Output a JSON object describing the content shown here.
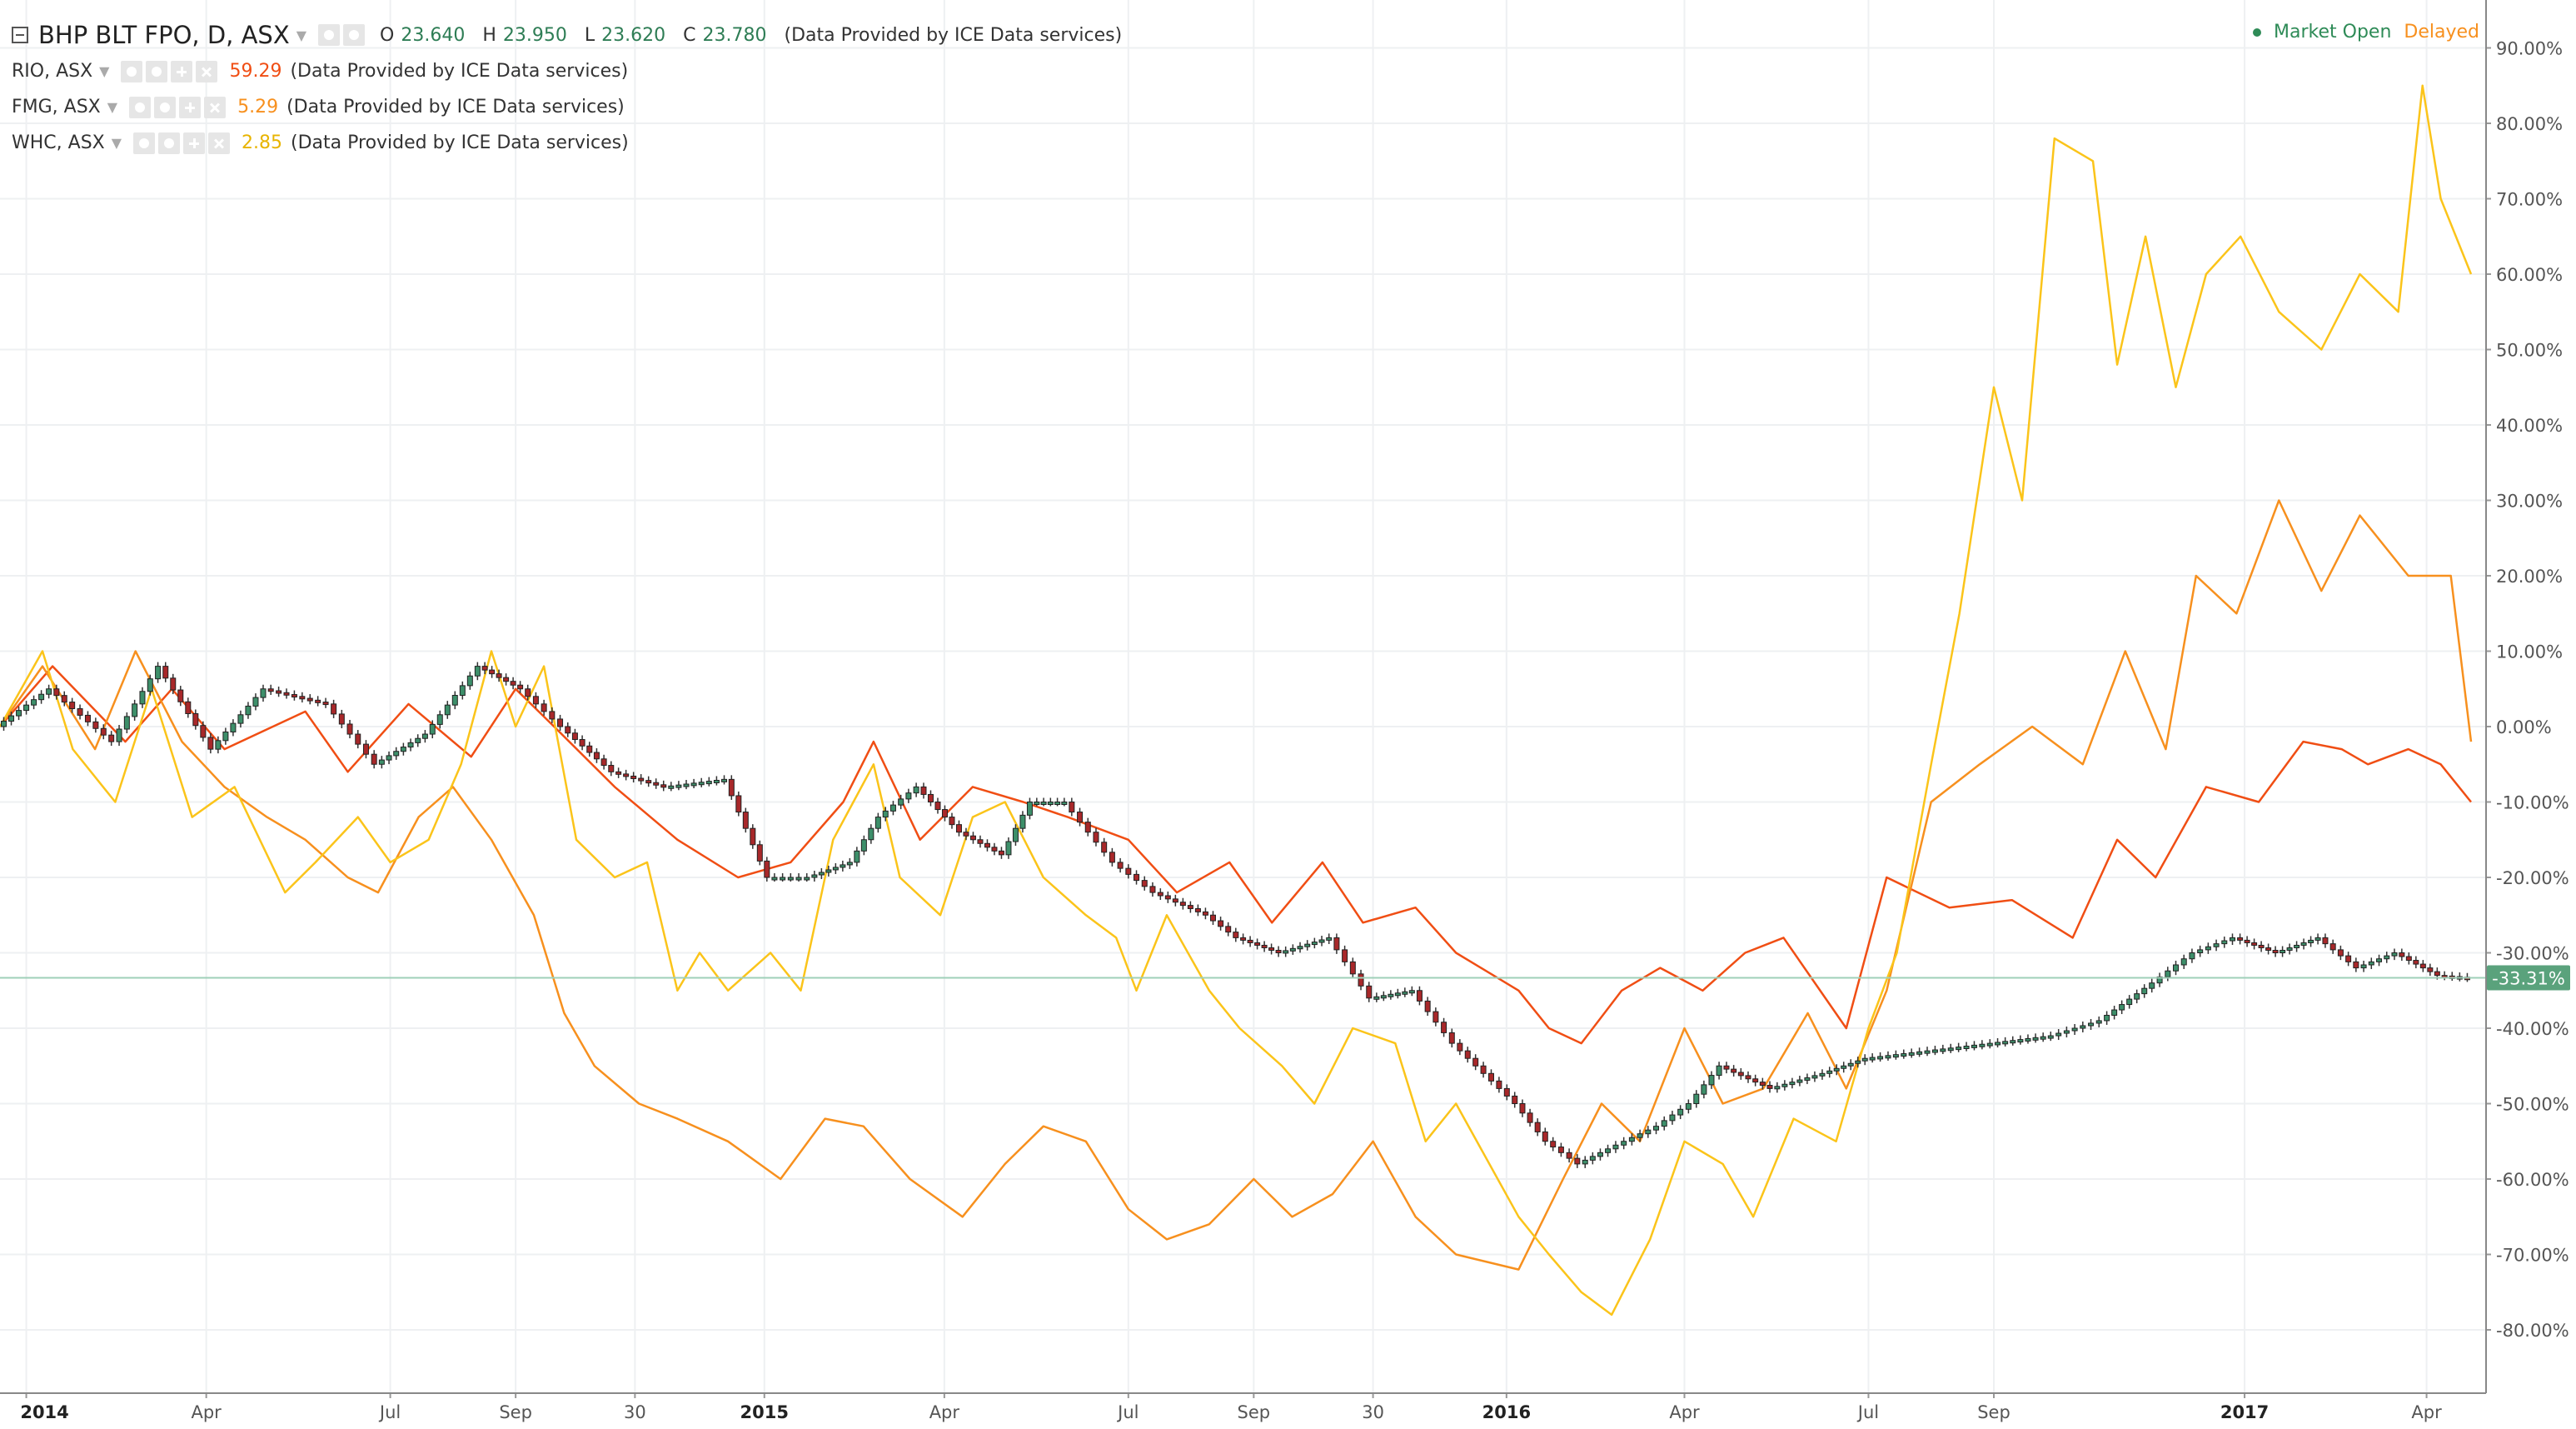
{
  "header": {
    "main_symbol": "BHP BLT FPO, D, ASX",
    "ohlc": [
      {
        "label": "O",
        "value": "23.640"
      },
      {
        "label": "H",
        "value": "23.950"
      },
      {
        "label": "L",
        "value": "23.620"
      },
      {
        "label": "C",
        "value": "23.780"
      }
    ],
    "provider": "(Data Provided by ICE Data services)",
    "market_status": "Market Open",
    "delay_status": "Delayed"
  },
  "overlays": [
    {
      "symbol": "RIO, ASX",
      "value": "59.29",
      "provider": "(Data Provided by ICE Data services)",
      "color": "#f04e14"
    },
    {
      "symbol": "FMG, ASX",
      "value": "5.29",
      "provider": "(Data Provided by ICE Data services)",
      "color": "#f7901e"
    },
    {
      "symbol": "WHC, ASX",
      "value": "2.85",
      "provider": "(Data Provided by ICE Data services)",
      "color": "#fbc41a"
    }
  ],
  "colors": {
    "up_candle": "#3d8f6a",
    "down_candle": "#a8282a",
    "price_label_bg": "#5aa27c",
    "market_open": "#2e8b57",
    "delayed": "#f7901e",
    "grid": "#eef0f2",
    "axis_text": "#555555"
  },
  "chart_data": {
    "type": "line",
    "y_unit": "%",
    "ylim": [
      -85,
      95
    ],
    "y_ticks": [
      "90.00%",
      "80.00%",
      "70.00%",
      "60.00%",
      "50.00%",
      "40.00%",
      "30.00%",
      "20.00%",
      "10.00%",
      "0.00%",
      "-10.00%",
      "-20.00%",
      "-30.00%",
      "-40.00%",
      "-50.00%",
      "-60.00%",
      "-70.00%",
      "-80.00%"
    ],
    "x_tick_labels": [
      "2014",
      "Apr",
      "Jul",
      "Sep",
      "30",
      "2015",
      "Apr",
      "Jul",
      "Sep",
      "30",
      "2016",
      "Apr",
      "Jul",
      "Sep",
      "2017",
      "Apr"
    ],
    "x_tick_dates": [
      "2014-01-02",
      "2014-04-01",
      "2014-07-01",
      "2014-09-01",
      "2014-10-30",
      "2015-01-02",
      "2015-04-01",
      "2015-07-01",
      "2015-09-01",
      "2015-10-30",
      "2016-01-04",
      "2016-04-01",
      "2016-07-01",
      "2016-09-01",
      "2017-01-03",
      "2017-04-03"
    ],
    "x_range": [
      "2013-12-20",
      "2017-04-25"
    ],
    "last_value_label": "-33.31%",
    "last_value": -33.31,
    "grid": true,
    "legend": "top-left",
    "series": [
      {
        "name": "RIO, ASX",
        "kind": "line",
        "color": "#f04e14",
        "x": [
          "2013-12-20",
          "2014-01-15",
          "2014-02-20",
          "2014-03-15",
          "2014-04-10",
          "2014-05-20",
          "2014-06-10",
          "2014-07-10",
          "2014-08-10",
          "2014-09-01",
          "2014-09-20",
          "2014-10-20",
          "2014-11-20",
          "2014-12-20",
          "2015-01-15",
          "2015-02-10",
          "2015-02-25",
          "2015-03-20",
          "2015-04-15",
          "2015-05-10",
          "2015-06-01",
          "2015-07-01",
          "2015-07-25",
          "2015-08-20",
          "2015-09-10",
          "2015-10-05",
          "2015-10-25",
          "2015-11-20",
          "2015-12-10",
          "2016-01-10",
          "2016-01-25",
          "2016-02-10",
          "2016-03-01",
          "2016-03-20",
          "2016-04-10",
          "2016-05-01",
          "2016-05-20",
          "2016-06-20",
          "2016-07-10",
          "2016-08-10",
          "2016-09-10",
          "2016-10-10",
          "2016-11-01",
          "2016-11-20",
          "2016-12-15",
          "2017-01-10",
          "2017-02-01",
          "2017-02-20",
          "2017-03-05",
          "2017-03-25",
          "2017-04-10",
          "2017-04-25"
        ],
        "y": [
          0,
          8,
          -2,
          5,
          -3,
          2,
          -6,
          3,
          -4,
          5,
          0,
          -8,
          -15,
          -20,
          -18,
          -10,
          -2,
          -15,
          -8,
          -10,
          -12,
          -15,
          -22,
          -18,
          -26,
          -18,
          -26,
          -24,
          -30,
          -35,
          -40,
          -42,
          -35,
          -32,
          -35,
          -30,
          -28,
          -40,
          -20,
          -24,
          -23,
          -28,
          -15,
          -20,
          -8,
          -10,
          -2,
          -3,
          -5,
          -3,
          -5,
          -10
        ]
      },
      {
        "name": "FMG, ASX",
        "kind": "line",
        "color": "#f7901e",
        "x": [
          "2013-12-20",
          "2014-01-10",
          "2014-02-05",
          "2014-02-25",
          "2014-03-20",
          "2014-04-10",
          "2014-05-01",
          "2014-05-20",
          "2014-06-10",
          "2014-06-25",
          "2014-07-15",
          "2014-08-01",
          "2014-08-20",
          "2014-09-10",
          "2014-09-25",
          "2014-10-10",
          "2014-11-01",
          "2014-11-20",
          "2014-12-15",
          "2015-01-10",
          "2015-02-01",
          "2015-02-20",
          "2015-03-15",
          "2015-04-10",
          "2015-05-01",
          "2015-05-20",
          "2015-06-10",
          "2015-07-01",
          "2015-07-20",
          "2015-08-10",
          "2015-09-01",
          "2015-09-20",
          "2015-10-10",
          "2015-10-30",
          "2015-11-20",
          "2015-12-10",
          "2016-01-10",
          "2016-02-01",
          "2016-02-20",
          "2016-03-10",
          "2016-04-01",
          "2016-04-20",
          "2016-05-10",
          "2016-06-01",
          "2016-06-20",
          "2016-07-10",
          "2016-08-01",
          "2016-08-25",
          "2016-09-20",
          "2016-10-15",
          "2016-11-05",
          "2016-11-25",
          "2016-12-10",
          "2016-12-30",
          "2017-01-20",
          "2017-02-10",
          "2017-03-01",
          "2017-03-25",
          "2017-04-15",
          "2017-04-25"
        ],
        "y": [
          0,
          8,
          -3,
          10,
          -2,
          -8,
          -12,
          -15,
          -20,
          -22,
          -12,
          -8,
          -15,
          -25,
          -38,
          -45,
          -50,
          -52,
          -55,
          -60,
          -52,
          -53,
          -60,
          -65,
          -58,
          -53,
          -55,
          -64,
          -68,
          -66,
          -60,
          -65,
          -62,
          -55,
          -65,
          -70,
          -72,
          -60,
          -50,
          -55,
          -40,
          -50,
          -48,
          -38,
          -48,
          -35,
          -10,
          -5,
          0,
          -5,
          10,
          -3,
          20,
          15,
          30,
          18,
          28,
          20,
          20,
          -2
        ]
      },
      {
        "name": "WHC, ASX",
        "kind": "line",
        "color": "#fbc41a",
        "x": [
          "2013-12-20",
          "2014-01-10",
          "2014-01-25",
          "2014-02-15",
          "2014-03-05",
          "2014-03-25",
          "2014-04-15",
          "2014-05-10",
          "2014-05-25",
          "2014-06-15",
          "2014-07-01",
          "2014-07-20",
          "2014-08-05",
          "2014-08-20",
          "2014-09-01",
          "2014-09-15",
          "2014-10-01",
          "2014-10-20",
          "2014-11-05",
          "2014-11-20",
          "2014-12-01",
          "2014-12-15",
          "2015-01-05",
          "2015-01-20",
          "2015-02-05",
          "2015-02-25",
          "2015-03-10",
          "2015-03-30",
          "2015-04-15",
          "2015-05-01",
          "2015-05-20",
          "2015-06-10",
          "2015-06-25",
          "2015-07-05",
          "2015-07-20",
          "2015-08-10",
          "2015-08-25",
          "2015-09-15",
          "2015-10-01",
          "2015-10-20",
          "2015-11-10",
          "2015-11-25",
          "2015-12-10",
          "2016-01-10",
          "2016-01-25",
          "2016-02-10",
          "2016-02-25",
          "2016-03-15",
          "2016-04-01",
          "2016-04-20",
          "2016-05-05",
          "2016-05-25",
          "2016-06-15",
          "2016-07-01",
          "2016-07-15",
          "2016-08-01",
          "2016-08-15",
          "2016-09-01",
          "2016-09-15",
          "2016-10-01",
          "2016-10-20",
          "2016-11-01",
          "2016-11-15",
          "2016-11-30",
          "2016-12-15",
          "2017-01-01",
          "2017-01-20",
          "2017-02-10",
          "2017-03-01",
          "2017-03-20",
          "2017-04-01",
          "2017-04-10",
          "2017-04-25"
        ],
        "y": [
          0,
          10,
          -3,
          -10,
          5,
          -12,
          -8,
          -22,
          -18,
          -12,
          -18,
          -15,
          -5,
          10,
          0,
          8,
          -15,
          -20,
          -18,
          -35,
          -30,
          -35,
          -30,
          -35,
          -15,
          -5,
          -20,
          -25,
          -12,
          -10,
          -20,
          -25,
          -28,
          -35,
          -25,
          -35,
          -40,
          -45,
          -50,
          -40,
          -42,
          -55,
          -50,
          -65,
          -70,
          -75,
          -78,
          -68,
          -55,
          -58,
          -65,
          -52,
          -55,
          -40,
          -30,
          -5,
          15,
          45,
          30,
          78,
          75,
          48,
          65,
          45,
          60,
          65,
          55,
          50,
          60,
          55,
          85,
          70,
          60
        ]
      },
      {
        "name": "BHP BLT FPO, D, ASX",
        "kind": "candles",
        "color": "#3d8f6a",
        "x": [
          "2013-12-20",
          "2014-01-15",
          "2014-02-15",
          "2014-03-10",
          "2014-04-05",
          "2014-05-01",
          "2014-06-01",
          "2014-06-25",
          "2014-07-20",
          "2014-08-15",
          "2014-09-05",
          "2014-09-25",
          "2014-10-20",
          "2014-11-15",
          "2014-12-15",
          "2015-01-05",
          "2015-01-25",
          "2015-02-15",
          "2015-03-01",
          "2015-03-20",
          "2015-04-10",
          "2015-05-01",
          "2015-05-15",
          "2015-06-01",
          "2015-06-25",
          "2015-07-15",
          "2015-08-10",
          "2015-08-25",
          "2015-09-15",
          "2015-10-10",
          "2015-10-30",
          "2015-11-20",
          "2015-12-10",
          "2016-01-10",
          "2016-01-25",
          "2016-02-10",
          "2016-02-25",
          "2016-03-20",
          "2016-04-05",
          "2016-04-20",
          "2016-05-15",
          "2016-06-10",
          "2016-07-01",
          "2016-08-01",
          "2016-09-01",
          "2016-10-01",
          "2016-10-25",
          "2016-11-20",
          "2016-12-10",
          "2016-12-30",
          "2017-01-20",
          "2017-02-10",
          "2017-03-01",
          "2017-03-20",
          "2017-04-10",
          "2017-04-25"
        ],
        "y": [
          0,
          5,
          -2,
          8,
          -3,
          5,
          3,
          -5,
          -1,
          8,
          5,
          0,
          -6,
          -8,
          -7,
          -20,
          -20,
          -18,
          -12,
          -8,
          -14,
          -17,
          -10,
          -10,
          -18,
          -22,
          -25,
          -28,
          -30,
          -28,
          -36,
          -35,
          -42,
          -50,
          -55,
          -58,
          -56,
          -53,
          -50,
          -45,
          -48,
          -46,
          -44,
          -43,
          -42,
          -41,
          -39,
          -34,
          -30,
          -28,
          -30,
          -28,
          -32,
          -30,
          -33,
          -33.31
        ]
      }
    ]
  }
}
